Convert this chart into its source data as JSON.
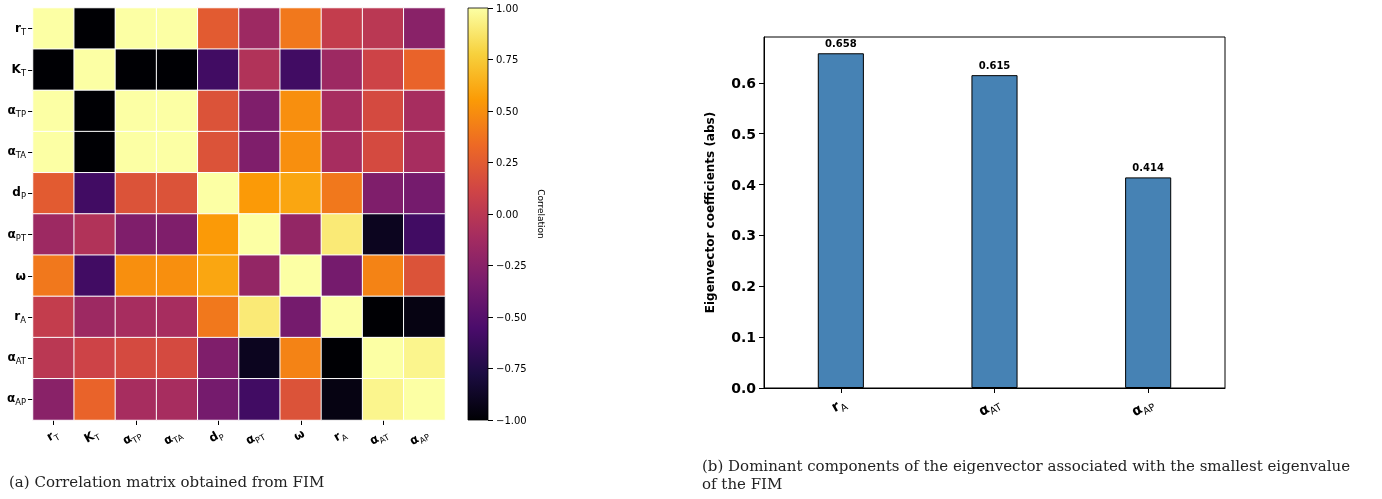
{
  "chart_data": [
    {
      "type": "heatmap",
      "categories": [
        "r$_{T}$",
        "K$_{T}$",
        "α$_{TP}$",
        "α$_{TA}$",
        "d$_{P}$",
        "α$_{PT}$",
        "ω",
        "r$_{A}$",
        "α$_{AT}$",
        "α$_{AP}$"
      ],
      "y_categories": [
        "r$_{T}$",
        "K$_{T}$",
        "α$_{TP}$",
        "α$_{TA}$",
        "d$_{P}$",
        "α$_{PT}$",
        "ω",
        "r$_{A}$",
        "α$_{AT}$",
        "α$_{AP}$"
      ],
      "cells": [
        [
          1,
          -1,
          1,
          1,
          0.25,
          -0.15,
          0.4,
          0.05,
          0.0,
          -0.25
        ],
        [
          -1,
          1,
          -1,
          -1,
          -0.6,
          -0.05,
          -0.6,
          -0.15,
          0.1,
          0.3
        ],
        [
          1,
          -1,
          1,
          1,
          0.2,
          -0.3,
          0.5,
          -0.1,
          0.15,
          -0.1
        ],
        [
          1,
          -1,
          1,
          1,
          0.2,
          -0.3,
          0.5,
          -0.1,
          0.15,
          -0.1
        ],
        [
          0.25,
          -0.6,
          0.2,
          0.2,
          1,
          0.55,
          0.6,
          0.4,
          -0.3,
          -0.35
        ],
        [
          -0.15,
          -0.05,
          -0.3,
          -0.3,
          0.55,
          1,
          -0.2,
          0.9,
          -0.9,
          -0.6
        ],
        [
          0.4,
          -0.6,
          0.5,
          0.5,
          0.6,
          -0.2,
          1,
          -0.35,
          0.45,
          0.2
        ],
        [
          0.05,
          -0.15,
          -0.1,
          -0.1,
          0.4,
          0.9,
          -0.35,
          1,
          -1,
          -0.95
        ],
        [
          0.0,
          0.1,
          0.15,
          0.15,
          -0.3,
          -0.9,
          0.45,
          -1,
          1,
          0.95
        ],
        [
          -0.25,
          0.3,
          -0.1,
          -0.1,
          -0.35,
          -0.6,
          0.2,
          -0.95,
          0.95,
          1
        ]
      ],
      "clim": [
        -1,
        1
      ],
      "cticks": [
        {
          "value": -1,
          "label": "−1.00"
        },
        {
          "value": -0.75,
          "label": "−0.75"
        },
        {
          "value": -0.5,
          "label": "−0.50"
        },
        {
          "value": -0.25,
          "label": "−0.25"
        },
        {
          "value": 0,
          "label": "0.00"
        },
        {
          "value": 0.25,
          "label": "0.25"
        },
        {
          "value": 0.5,
          "label": "0.50"
        },
        {
          "value": 0.75,
          "label": "0.75"
        },
        {
          "value": 1,
          "label": "1.00"
        }
      ],
      "clabel": "Correlation",
      "annotations": [
        "(a) Correlation matrix obtained from FIM"
      ]
    },
    {
      "type": "bar",
      "categories": [
        "r$_{A}$",
        "α$_{AT}$",
        "α$_{AP}$"
      ],
      "values": [
        0.658,
        0.615,
        0.414
      ],
      "color": "#4682b4",
      "data_labels": true,
      "ylabel": "Eigenvector coefficients (abs)",
      "ylim": [
        0,
        0.69
      ],
      "yticks": [
        {
          "value": 0,
          "label": "0.0"
        },
        {
          "value": 0.1,
          "label": "0.1"
        },
        {
          "value": 0.2,
          "label": "0.2"
        },
        {
          "value": 0.3,
          "label": "0.3"
        },
        {
          "value": 0.4,
          "label": "0.4"
        },
        {
          "value": 0.5,
          "label": "0.5"
        },
        {
          "value": 0.6,
          "label": "0.6"
        }
      ],
      "grid": false,
      "annotations": [
        "(b) Dominant components of the eigenvector associated with the smallest eigenvalue of the FIM"
      ]
    }
  ]
}
